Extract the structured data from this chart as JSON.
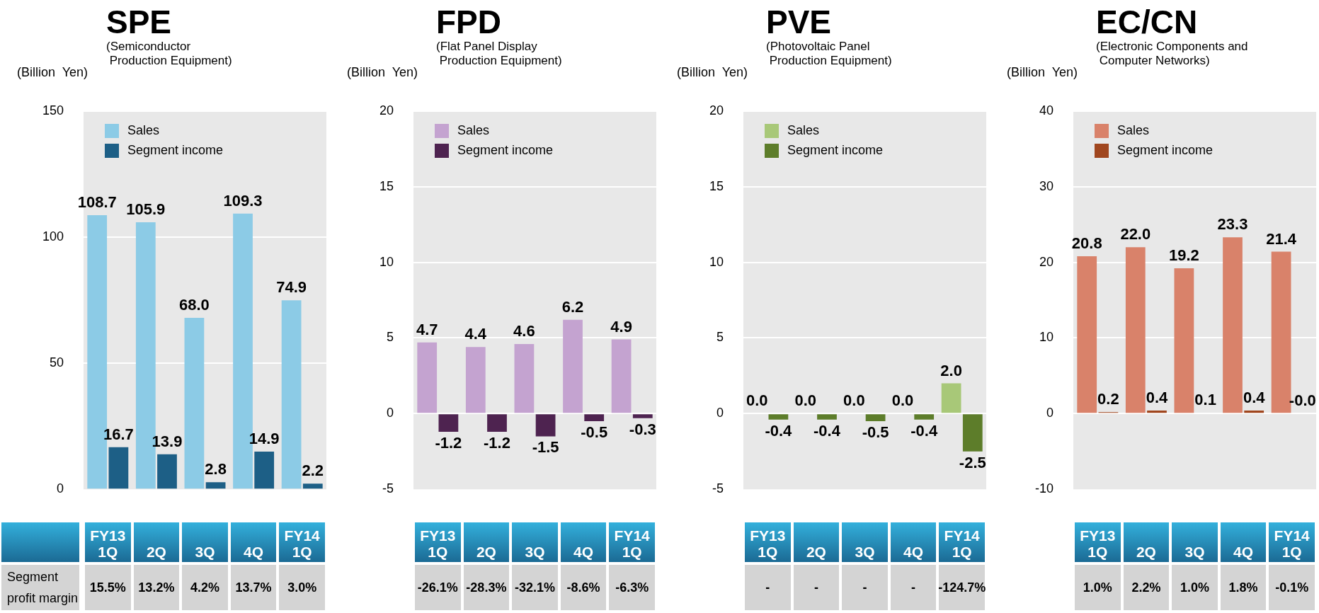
{
  "chart_data": [
    {
      "type": "bar",
      "title": "SPE",
      "subtitle": "(Semiconductor\n Production Equipment)",
      "ylabel": "(Billion  Yen)",
      "categories": [
        "FY13 1Q",
        "2Q",
        "3Q",
        "4Q",
        "FY14 1Q"
      ],
      "series": [
        {
          "name": "Sales",
          "color": "#8ccbe6",
          "values": [
            108.7,
            105.9,
            68.0,
            109.3,
            74.9
          ],
          "value_labels": [
            "108.7",
            "105.9",
            "68.0",
            "109.3",
            "74.9"
          ]
        },
        {
          "name": "Segment income",
          "color": "#1d5f86",
          "values": [
            16.7,
            13.9,
            2.8,
            14.9,
            2.2
          ],
          "value_labels": [
            "16.7",
            "13.9",
            "2.8",
            "14.9",
            "2.2"
          ]
        }
      ],
      "ylim": [
        0,
        150
      ],
      "yticks": [
        0,
        50,
        100,
        150
      ],
      "grid": "y",
      "legend": "top left",
      "annotations": [
        "Segment\nprofit margin",
        "15.5%",
        "13.2%",
        "4.2%",
        "13.7%",
        "3.0%"
      ]
    },
    {
      "type": "bar",
      "title": "FPD",
      "subtitle": "(Flat Panel Display\n Production Equipment)",
      "ylabel": "(Billion  Yen)",
      "categories": [
        "FY13 1Q",
        "2Q",
        "3Q",
        "4Q",
        "FY14 1Q"
      ],
      "series": [
        {
          "name": "Sales",
          "color": "#c4a3d0",
          "values": [
            4.7,
            4.4,
            4.6,
            6.2,
            4.9
          ],
          "value_labels": [
            "4.7",
            "4.4",
            "4.6",
            "6.2",
            "4.9"
          ]
        },
        {
          "name": "Segment income",
          "color": "#4e2350",
          "values": [
            -1.2,
            -1.2,
            -1.5,
            -0.5,
            -0.3
          ],
          "value_labels": [
            "-1.2",
            "-1.2",
            "-1.5",
            "-0.5",
            "-0.3"
          ]
        }
      ],
      "ylim": [
        -5,
        20
      ],
      "yticks": [
        -5,
        0,
        5,
        10,
        15,
        20
      ],
      "grid": "y",
      "legend": "top left",
      "annotations": [
        "-26.1%",
        "-28.3%",
        "-32.1%",
        "-8.6%",
        "-6.3%"
      ]
    },
    {
      "type": "bar",
      "title": "PVE",
      "subtitle": "(Photovoltaic Panel\n Production Equipment)",
      "ylabel": "(Billion  Yen)",
      "categories": [
        "FY13 1Q",
        "2Q",
        "3Q",
        "4Q",
        "FY14 1Q"
      ],
      "series": [
        {
          "name": "Sales",
          "color": "#a8c878",
          "values": [
            0.0,
            0.0,
            0.0,
            0.0,
            2.0
          ],
          "value_labels": [
            "0.0",
            "0.0",
            "0.0",
            "0.0",
            "2.0"
          ]
        },
        {
          "name": "Segment income",
          "color": "#5d7d2a",
          "values": [
            -0.4,
            -0.4,
            -0.5,
            -0.4,
            -2.5
          ],
          "value_labels": [
            "-0.4",
            "-0.4",
            "-0.5",
            "-0.4",
            "-2.5"
          ]
        }
      ],
      "ylim": [
        -5,
        20
      ],
      "yticks": [
        -5,
        0,
        5,
        10,
        15,
        20
      ],
      "grid": "y",
      "legend": "top left",
      "annotations": [
        "-",
        "-",
        "-",
        "-",
        "-124.7%"
      ]
    },
    {
      "type": "bar",
      "title": "EC/CN",
      "subtitle": "(Electronic Components and\n Computer Networks)",
      "ylabel": "(Billion  Yen)",
      "categories": [
        "FY13 1Q",
        "2Q",
        "3Q",
        "4Q",
        "FY14 1Q"
      ],
      "series": [
        {
          "name": "Sales",
          "color": "#d9826a",
          "values": [
            20.8,
            22.0,
            19.2,
            23.3,
            21.4
          ],
          "value_labels": [
            "20.8",
            "22.0",
            "19.2",
            "23.3",
            "21.4"
          ]
        },
        {
          "name": "Segment income",
          "color": "#a0461e",
          "values": [
            0.2,
            0.4,
            0.1,
            0.4,
            0.0
          ],
          "value_labels": [
            "0.2",
            "0.4",
            "0.1",
            "0.4",
            "-0.0"
          ]
        }
      ],
      "ylim": [
        -10,
        40
      ],
      "yticks": [
        -10,
        0,
        10,
        20,
        30,
        40
      ],
      "grid": "y",
      "legend": "top left",
      "annotations": [
        "1.0%",
        "2.2%",
        "1.0%",
        "1.8%",
        "-0.1%"
      ]
    }
  ]
}
